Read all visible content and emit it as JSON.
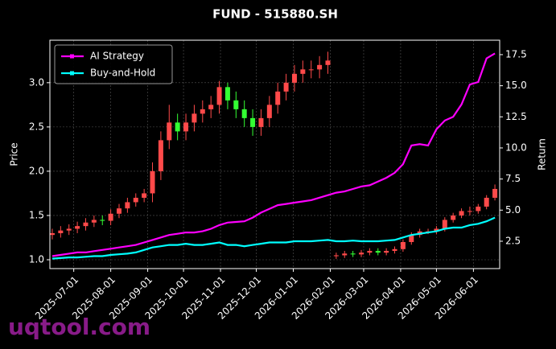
{
  "chart_data": {
    "type": "candlestick",
    "title": "FUND - 515880.SH",
    "ylabel": "Price",
    "y2label": "Return",
    "watermark": "uqtool.com",
    "x": [
      "2025-06-13",
      "2025-06-20",
      "2025-06-27",
      "2025-07-04",
      "2025-07-11",
      "2025-07-18",
      "2025-07-25",
      "2025-08-01",
      "2025-08-08",
      "2025-08-15",
      "2025-08-22",
      "2025-08-29",
      "2025-09-05",
      "2025-09-12",
      "2025-09-19",
      "2025-09-26",
      "2025-10-03",
      "2025-10-10",
      "2025-10-17",
      "2025-10-24",
      "2025-10-31",
      "2025-11-07",
      "2025-11-14",
      "2025-11-21",
      "2025-11-28",
      "2025-12-05",
      "2025-12-12",
      "2025-12-19",
      "2025-12-26",
      "2026-01-02",
      "2026-01-09",
      "2026-01-16",
      "2026-01-23",
      "2026-01-30",
      "2026-02-06",
      "2026-02-13",
      "2026-02-20",
      "2026-02-27",
      "2026-03-06",
      "2026-03-13",
      "2026-03-20",
      "2026-03-27",
      "2026-04-03",
      "2026-04-10",
      "2026-04-17",
      "2026-04-24",
      "2026-05-01",
      "2026-05-08",
      "2026-05-15",
      "2026-05-22",
      "2026-05-29",
      "2026-06-05",
      "2026-06-12",
      "2026-06-19"
    ],
    "open": [
      1.28,
      1.3,
      1.33,
      1.35,
      1.38,
      1.42,
      1.45,
      1.44,
      1.52,
      1.58,
      1.65,
      1.7,
      1.75,
      2.0,
      2.35,
      2.55,
      2.45,
      2.55,
      2.65,
      2.7,
      2.75,
      2.95,
      2.8,
      2.7,
      2.6,
      2.5,
      2.6,
      2.75,
      2.9,
      3.0,
      3.1,
      3.15,
      3.15,
      3.2,
      1.04,
      1.05,
      1.07,
      1.06,
      1.08,
      1.1,
      1.08,
      1.1,
      1.12,
      1.2,
      1.28,
      1.32,
      1.32,
      1.35,
      1.45,
      1.5,
      1.55,
      1.55,
      1.6,
      1.7
    ],
    "high": [
      1.35,
      1.38,
      1.4,
      1.43,
      1.47,
      1.5,
      1.5,
      1.57,
      1.63,
      1.7,
      1.75,
      1.8,
      2.1,
      2.45,
      2.75,
      2.65,
      2.65,
      2.75,
      2.8,
      2.85,
      3.02,
      3.0,
      2.9,
      2.8,
      2.7,
      2.7,
      2.85,
      3.0,
      3.1,
      3.2,
      3.25,
      3.25,
      3.3,
      3.35,
      1.08,
      1.1,
      1.1,
      1.11,
      1.13,
      1.13,
      1.13,
      1.15,
      1.23,
      1.31,
      1.35,
      1.35,
      1.38,
      1.48,
      1.53,
      1.58,
      1.6,
      1.63,
      1.73,
      1.85
    ],
    "low": [
      1.23,
      1.25,
      1.28,
      1.3,
      1.33,
      1.37,
      1.39,
      1.39,
      1.47,
      1.53,
      1.6,
      1.65,
      1.65,
      1.9,
      2.25,
      2.35,
      2.35,
      2.45,
      2.55,
      2.6,
      2.65,
      2.7,
      2.6,
      2.5,
      2.4,
      2.4,
      2.5,
      2.65,
      2.8,
      2.9,
      3.0,
      3.05,
      3.05,
      3.1,
      1.01,
      1.02,
      1.03,
      1.03,
      1.05,
      1.05,
      1.05,
      1.07,
      1.09,
      1.17,
      1.25,
      1.29,
      1.29,
      1.32,
      1.42,
      1.47,
      1.5,
      1.52,
      1.57,
      1.67
    ],
    "close": [
      1.3,
      1.33,
      1.35,
      1.38,
      1.42,
      1.45,
      1.44,
      1.52,
      1.58,
      1.65,
      1.7,
      1.75,
      2.0,
      2.35,
      2.55,
      2.45,
      2.55,
      2.65,
      2.7,
      2.75,
      2.95,
      2.8,
      2.7,
      2.6,
      2.5,
      2.6,
      2.75,
      2.9,
      3.0,
      3.1,
      3.15,
      3.15,
      3.2,
      3.25,
      1.05,
      1.07,
      1.06,
      1.08,
      1.1,
      1.08,
      1.1,
      1.12,
      1.2,
      1.28,
      1.32,
      1.32,
      1.35,
      1.45,
      1.5,
      1.55,
      1.55,
      1.6,
      1.7,
      1.8
    ],
    "up_color": "#ff4a4a",
    "down_color": "#33ff33",
    "series": [
      {
        "name": "AI Strategy",
        "color": "#ff00ff",
        "axis": "y2",
        "values": [
          1.3,
          1.4,
          1.5,
          1.6,
          1.6,
          1.7,
          1.8,
          1.9,
          2.0,
          2.1,
          2.2,
          2.4,
          2.6,
          2.8,
          3.0,
          3.1,
          3.2,
          3.2,
          3.3,
          3.5,
          3.8,
          4.0,
          4.05,
          4.1,
          4.4,
          4.8,
          5.1,
          5.4,
          5.5,
          5.6,
          5.7,
          5.8,
          6.0,
          6.2,
          6.4,
          6.5,
          6.7,
          6.9,
          7.0,
          7.3,
          7.6,
          8.0,
          8.7,
          10.2,
          10.3,
          10.2,
          11.5,
          12.2,
          12.5,
          13.5,
          15.1,
          15.3,
          17.2,
          17.6
        ]
      },
      {
        "name": "Buy-and-Hold",
        "color": "#00ffff",
        "axis": "y2",
        "values": [
          1.1,
          1.15,
          1.2,
          1.2,
          1.25,
          1.3,
          1.3,
          1.4,
          1.45,
          1.5,
          1.6,
          1.8,
          2.0,
          2.1,
          2.2,
          2.2,
          2.3,
          2.2,
          2.2,
          2.3,
          2.4,
          2.2,
          2.2,
          2.1,
          2.2,
          2.3,
          2.4,
          2.4,
          2.4,
          2.5,
          2.5,
          2.5,
          2.55,
          2.6,
          2.5,
          2.5,
          2.55,
          2.5,
          2.5,
          2.5,
          2.55,
          2.6,
          2.8,
          3.0,
          3.1,
          3.2,
          3.3,
          3.5,
          3.6,
          3.6,
          3.8,
          3.9,
          4.1,
          4.4
        ]
      }
    ],
    "xlim": [
      "2025-06-11",
      "2026-06-23"
    ],
    "xticks": [
      "2025-07-01",
      "2025-08-01",
      "2025-09-01",
      "2025-10-01",
      "2025-11-01",
      "2025-12-01",
      "2026-01-01",
      "2026-02-01",
      "2026-03-01",
      "2026-04-01",
      "2026-05-01",
      "2026-06-01"
    ],
    "ylim": [
      0.9,
      3.48
    ],
    "yticks": [
      {
        "value": 1,
        "label": "1.0"
      },
      1.5,
      {
        "value": 2,
        "label": "2.0"
      },
      2.5,
      {
        "value": 3,
        "label": "3.0"
      }
    ],
    "y2lim": [
      0.3,
      18.66
    ],
    "y2ticks": [
      2.5,
      {
        "value": 5,
        "label": "5.0"
      },
      {
        "value": 7.5,
        "label": "7.5"
      },
      {
        "value": 10,
        "label": "10.0"
      },
      12.5,
      {
        "value": 15,
        "label": "15.0"
      },
      17.5
    ],
    "grid": true,
    "legend": "upper left"
  }
}
